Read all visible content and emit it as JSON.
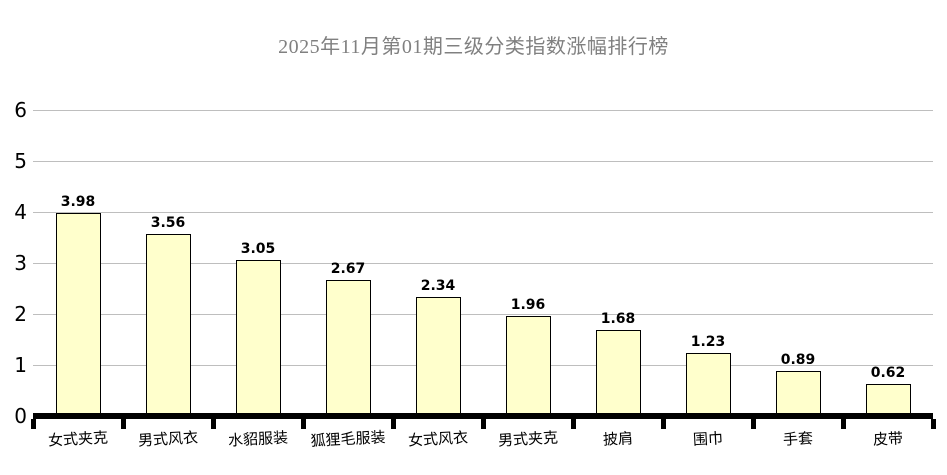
{
  "chart_data": {
    "type": "bar",
    "title": "2025年11月第01期三级分类指数涨幅排行榜",
    "categories": [
      "女式夹克",
      "男式风衣",
      "水貂服装",
      "狐狸毛服装",
      "女式风衣",
      "男式夹克",
      "披肩",
      "围巾",
      "手套",
      "皮带"
    ],
    "values": [
      3.98,
      3.56,
      3.05,
      2.67,
      2.34,
      1.96,
      1.68,
      1.23,
      0.89,
      0.62
    ],
    "value_labels": [
      "3.98",
      "3.56",
      "3.05",
      "2.67",
      "2.34",
      "1.96",
      "1.68",
      "1.23",
      "0.89",
      "0.62"
    ],
    "xlabel": "",
    "ylabel": "",
    "ylim": [
      0,
      6
    ],
    "y_ticks": [
      0,
      1,
      2,
      3,
      4,
      5,
      6
    ],
    "grid": true,
    "legend_position": "none",
    "colors": {
      "bar_fill": "#FFFFCC",
      "bar_border": "#000000",
      "gridline": "#BEBEBE",
      "axis": "#000000",
      "title_text": "#808080",
      "label_text": "#000000",
      "background": "#FFFFFF"
    }
  }
}
